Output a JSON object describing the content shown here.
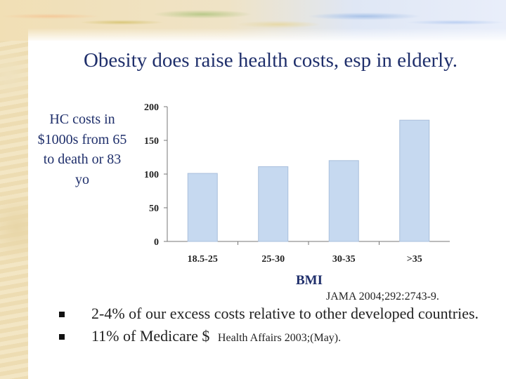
{
  "slide": {
    "title": "Obesity does raise health costs, esp in elderly.",
    "ylabel": "HC costs in $1000s from 65 to death or 83 yo",
    "xlabel": "BMI",
    "citation": "JAMA 2004;292:2743-9."
  },
  "bullets": [
    {
      "text": "2-4% of our excess costs relative to other developed countries.",
      "cite": ""
    },
    {
      "text": "11% of Medicare $",
      "cite": "Health Affairs 2003;(May)."
    }
  ],
  "chart_data": {
    "type": "bar",
    "categories": [
      "18.5-25",
      "25-30",
      "30-35",
      ">35"
    ],
    "values": [
      101,
      111,
      120,
      180
    ],
    "ylim": [
      0,
      200
    ],
    "yticks": [
      0,
      50,
      100,
      150,
      200
    ],
    "xlabel": "BMI",
    "ylabel": "HC costs in $1000s from 65 to death or 83 yo",
    "bar_color": "#c6d9f0",
    "bar_stroke": "#a9bfdc",
    "grid": false,
    "legend": "none"
  }
}
